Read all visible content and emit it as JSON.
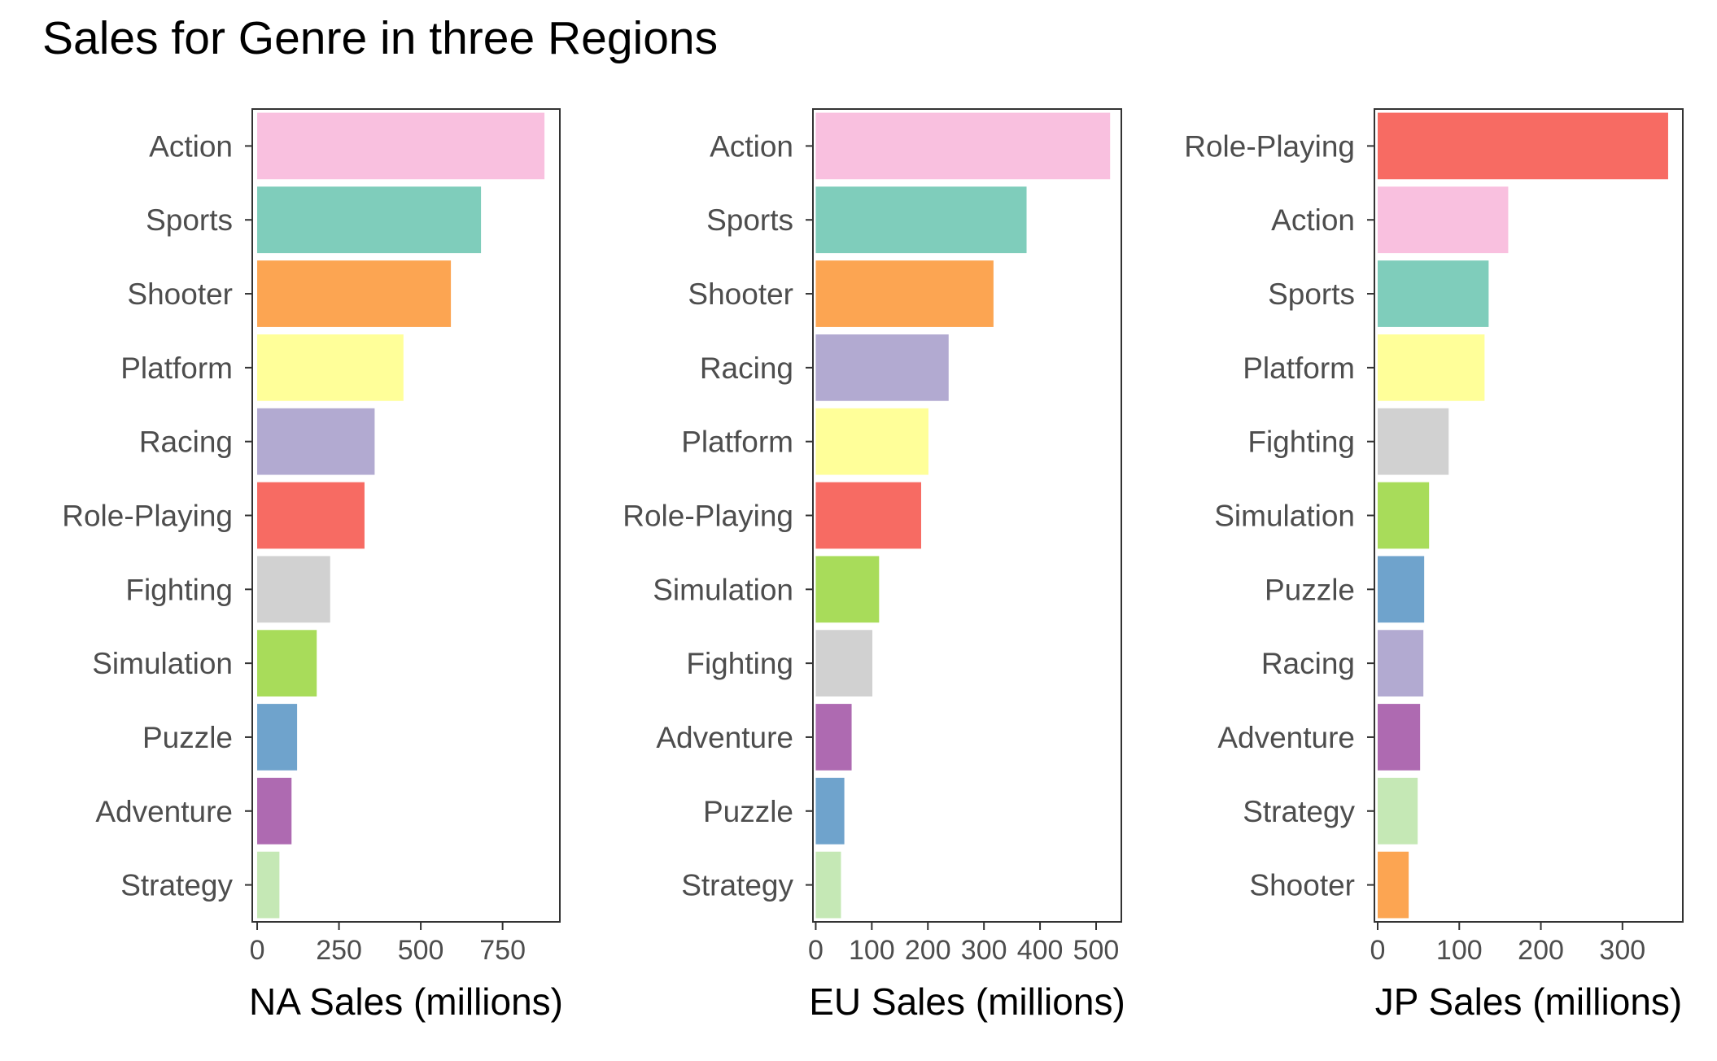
{
  "title": "Sales for Genre in three Regions",
  "colors": {
    "Action": "#f9c0df",
    "Sports": "#7fcdbb",
    "Shooter": "#fca552",
    "Platform": "#ffff99",
    "Racing": "#b2aad1",
    "Role-Playing": "#f76b63",
    "Fighting": "#d1d1d1",
    "Simulation": "#a8dc5a",
    "Puzzle": "#6fa3cc",
    "Adventure": "#ae6ab1",
    "Strategy": "#c5e8b5"
  },
  "chart_data": [
    {
      "type": "bar",
      "orientation": "horizontal",
      "xlabel": "NA Sales (millions)",
      "xlim": [
        -15,
        925
      ],
      "xticks": [
        0,
        250,
        500,
        750
      ],
      "categories": [
        "Action",
        "Sports",
        "Shooter",
        "Platform",
        "Racing",
        "Role-Playing",
        "Fighting",
        "Simulation",
        "Puzzle",
        "Adventure",
        "Strategy"
      ],
      "values": [
        878,
        684,
        592,
        447,
        359,
        328,
        223,
        182,
        122,
        105,
        68
      ]
    },
    {
      "type": "bar",
      "orientation": "horizontal",
      "xlabel": "EU Sales (millions)",
      "xlim": [
        -5,
        545
      ],
      "xticks": [
        0,
        100,
        200,
        300,
        400,
        500
      ],
      "categories": [
        "Action",
        "Sports",
        "Shooter",
        "Racing",
        "Platform",
        "Role-Playing",
        "Simulation",
        "Fighting",
        "Adventure",
        "Puzzle",
        "Strategy"
      ],
      "values": [
        525,
        376,
        317,
        237,
        201,
        188,
        113,
        101,
        64,
        51,
        45
      ]
    },
    {
      "type": "bar",
      "orientation": "horizontal",
      "xlabel": "JP Sales (millions)",
      "xlim": [
        -4,
        374
      ],
      "xticks": [
        0,
        100,
        200,
        300
      ],
      "categories": [
        "Role-Playing",
        "Action",
        "Sports",
        "Platform",
        "Fighting",
        "Simulation",
        "Puzzle",
        "Racing",
        "Adventure",
        "Strategy",
        "Shooter"
      ],
      "values": [
        356,
        160,
        136,
        131,
        87,
        63,
        57,
        56,
        52,
        49,
        38
      ]
    }
  ]
}
